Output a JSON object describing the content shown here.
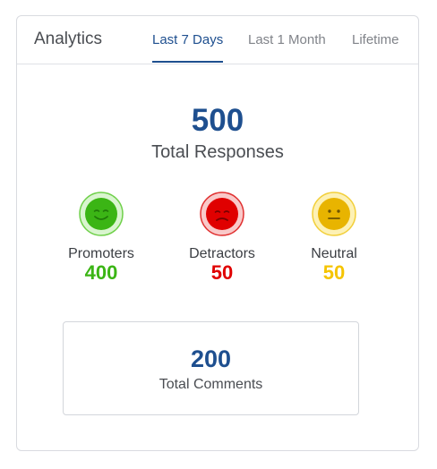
{
  "card": {
    "title": "Analytics",
    "tabs": [
      {
        "label": "Last 7 Days",
        "active": true
      },
      {
        "label": "Last 1 Month",
        "active": false
      },
      {
        "label": "Lifetime",
        "active": false
      }
    ]
  },
  "summary": {
    "total_value": "500",
    "total_label": "Total Responses"
  },
  "metrics": [
    {
      "label": "Promoters",
      "value": "400",
      "color": "#3bb515",
      "icon": "happy-face-icon"
    },
    {
      "label": "Detractors",
      "value": "50",
      "color": "#e00000",
      "icon": "sad-face-icon"
    },
    {
      "label": "Neutral",
      "value": "50",
      "color": "#f5c400",
      "icon": "neutral-face-icon"
    }
  ],
  "comments": {
    "value": "200",
    "label": "Total Comments"
  },
  "colors": {
    "accent": "#1e4f8f"
  }
}
